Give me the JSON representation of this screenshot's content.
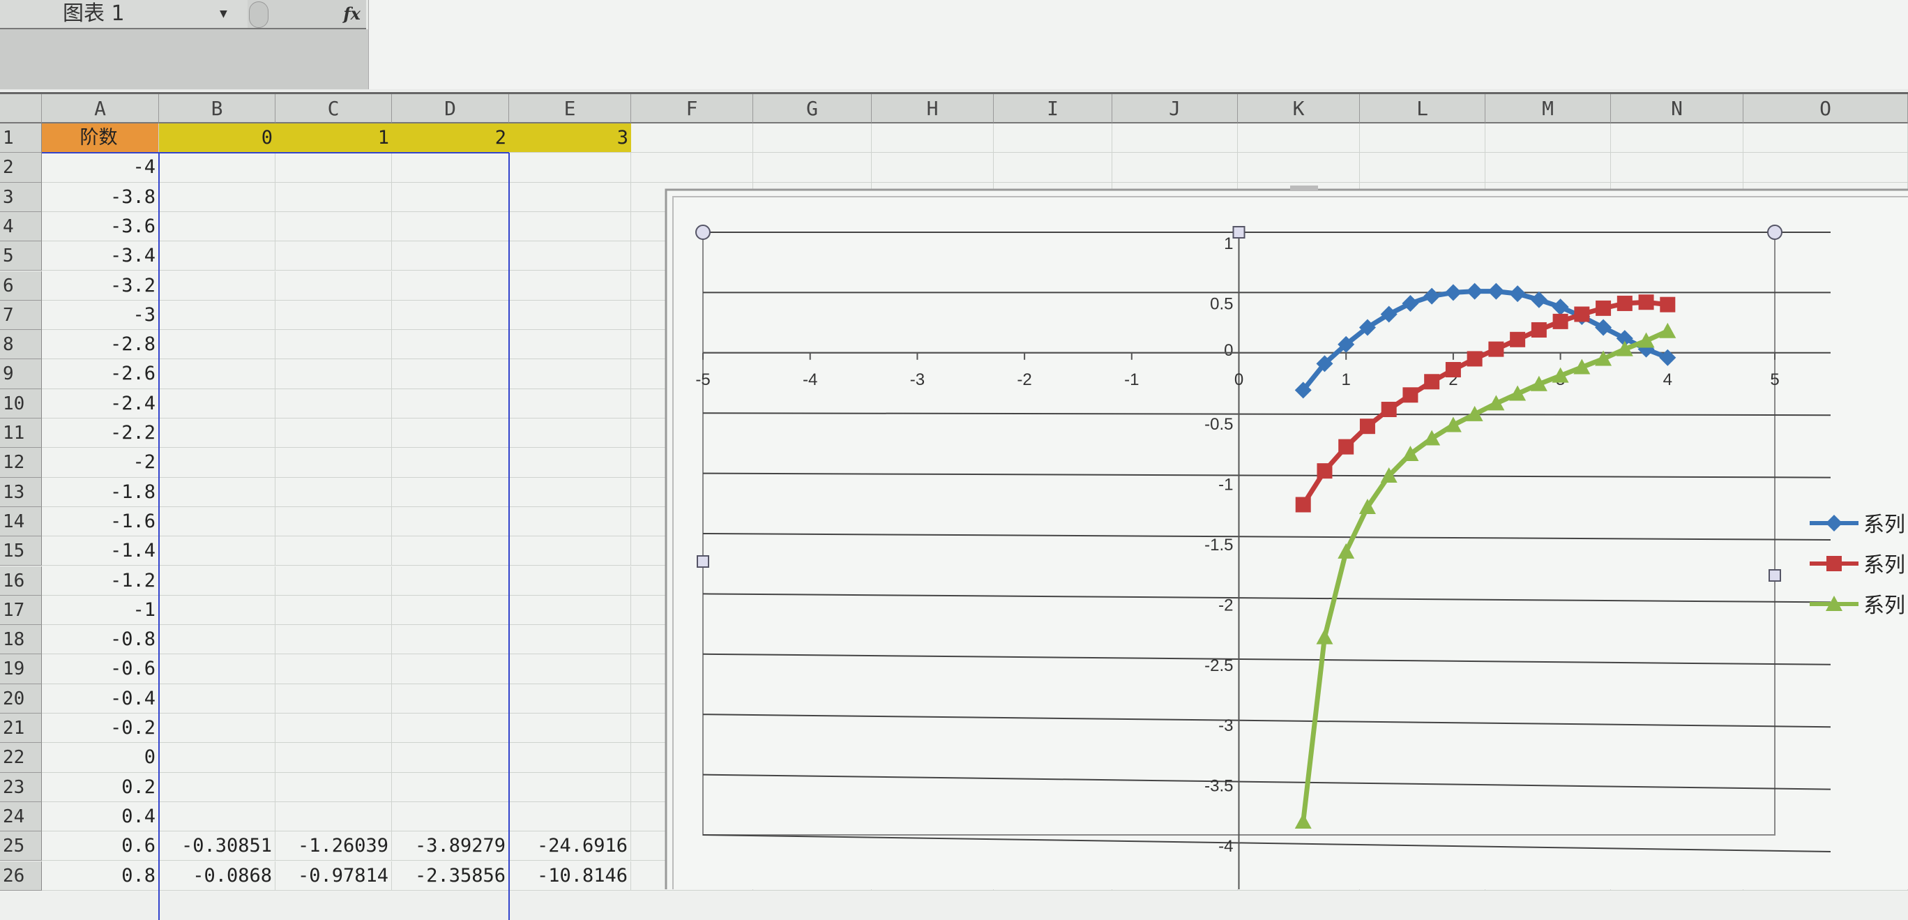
{
  "toolbar": {
    "name_box": "图表 1",
    "fx_label": "fx"
  },
  "sheet": {
    "columns": [
      "A",
      "B",
      "C",
      "D",
      "E",
      "F",
      "G",
      "H",
      "I",
      "J",
      "K",
      "L",
      "M",
      "N",
      "O"
    ],
    "header_row": [
      "阶数",
      "0",
      "1",
      "2",
      "3"
    ],
    "rows": [
      [
        "-4"
      ],
      [
        "-3.8"
      ],
      [
        "-3.6"
      ],
      [
        "-3.4"
      ],
      [
        "-3.2"
      ],
      [
        "-3"
      ],
      [
        "-2.8"
      ],
      [
        "-2.6"
      ],
      [
        "-2.4"
      ],
      [
        "-2.2"
      ],
      [
        "-2"
      ],
      [
        "-1.8"
      ],
      [
        "-1.6"
      ],
      [
        "-1.4"
      ],
      [
        "-1.2"
      ],
      [
        "-1"
      ],
      [
        "-0.8"
      ],
      [
        "-0.6"
      ],
      [
        "-0.4"
      ],
      [
        "-0.2"
      ],
      [
        "0"
      ],
      [
        "0.2"
      ],
      [
        "0.4"
      ],
      [
        "0.6",
        "-0.30851",
        "-1.26039",
        "-3.89279",
        "-24.6916"
      ],
      [
        "0.8",
        "-0.0868",
        "-0.97814",
        "-2.35856",
        "-10.8146"
      ]
    ],
    "colors": {
      "header_a": "#e8953a",
      "header_values": "#d9c81e",
      "selection": "#3344cc"
    }
  },
  "chart_data": {
    "type": "scatter",
    "title": "",
    "xlim": [
      -5,
      5
    ],
    "ylim": [
      -4,
      1
    ],
    "x_ticks": [
      "-5",
      "-4",
      "-3",
      "-2",
      "-1",
      "0",
      "1",
      "2",
      "3",
      "4",
      "5"
    ],
    "y_ticks": [
      "1",
      "0.5",
      "0",
      "-0.5",
      "-1",
      "-1.5",
      "-2",
      "-2.5",
      "-3",
      "-3.5",
      "-4"
    ],
    "grid": true,
    "legend_position": "right",
    "x": [
      0.6,
      0.8,
      1.0,
      1.2,
      1.4,
      1.6,
      1.8,
      2.0,
      2.2,
      2.4,
      2.6,
      2.8,
      3.0,
      3.2,
      3.4,
      3.6,
      3.8,
      4.0
    ],
    "series": [
      {
        "name": "系列",
        "color": "#3a75b8",
        "marker": "diamond",
        "values": [
          -0.31,
          -0.09,
          0.07,
          0.21,
          0.32,
          0.41,
          0.47,
          0.5,
          0.51,
          0.51,
          0.49,
          0.44,
          0.38,
          0.3,
          0.21,
          0.12,
          0.03,
          -0.04
        ]
      },
      {
        "name": "系列",
        "color": "#c23b3b",
        "marker": "square",
        "values": [
          -1.26,
          -0.98,
          -0.78,
          -0.61,
          -0.47,
          -0.35,
          -0.24,
          -0.14,
          -0.05,
          0.03,
          0.11,
          0.19,
          0.26,
          0.32,
          0.37,
          0.41,
          0.42,
          0.4
        ]
      },
      {
        "name": "系列",
        "color": "#8cb84a",
        "marker": "triangle",
        "values": [
          -3.89,
          -2.36,
          -1.65,
          -1.28,
          -1.02,
          -0.84,
          -0.71,
          -0.6,
          -0.51,
          -0.42,
          -0.34,
          -0.26,
          -0.19,
          -0.12,
          -0.05,
          0.03,
          0.1,
          0.18
        ]
      }
    ]
  }
}
